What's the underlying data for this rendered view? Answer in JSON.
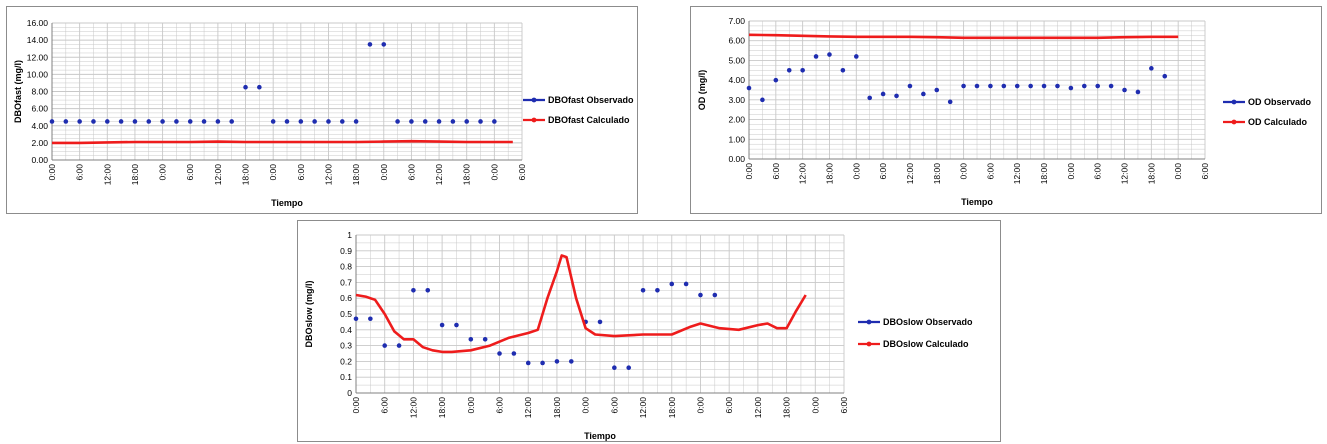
{
  "colors": {
    "observed": "#1f2db0",
    "calculated": "#ee1c1c",
    "grid": "#c8c8c8",
    "axis": "#808080"
  },
  "chart_data": [
    {
      "type": "scatter",
      "xlabel": "Tiempo",
      "ylabel": "DBOfast (mg/l)",
      "ylim": [
        0,
        16
      ],
      "ytick_step": 2,
      "ytick_decimals": 2,
      "x_tick_labels": [
        "0:00",
        "6:00",
        "12:00",
        "18:00",
        "0:00",
        "6:00",
        "12:00",
        "18:00",
        "0:00",
        "6:00",
        "12:00",
        "18:00",
        "0:00",
        "6:00",
        "12:00",
        "18:00",
        "0:00",
        "6:00"
      ],
      "xlim_hours": [
        0,
        102
      ],
      "grid": true,
      "legend_position": "right",
      "series": [
        {
          "name": "DBOfast Observado",
          "style": "markers",
          "x_hours": [
            0,
            3,
            6,
            9,
            12,
            15,
            18,
            21,
            24,
            27,
            30,
            33,
            36,
            39,
            42,
            45,
            48,
            51,
            54,
            57,
            60,
            63,
            66,
            69,
            72,
            75,
            78,
            81,
            84,
            87,
            90,
            93,
            96
          ],
          "values": [
            4.5,
            4.5,
            4.5,
            4.5,
            4.5,
            4.5,
            4.5,
            4.5,
            4.5,
            4.5,
            4.5,
            4.5,
            4.5,
            4.5,
            8.5,
            8.5,
            4.5,
            4.5,
            4.5,
            4.5,
            4.5,
            4.5,
            4.5,
            13.5,
            13.5,
            4.5,
            4.5,
            4.5,
            4.5,
            4.5,
            4.5,
            4.5,
            4.5
          ]
        },
        {
          "name": "DBOfast Calculado",
          "style": "line",
          "x_hours": [
            0,
            6,
            12,
            18,
            24,
            30,
            36,
            42,
            48,
            54,
            60,
            66,
            72,
            78,
            84,
            90,
            96,
            100
          ],
          "values": [
            2.0,
            2.0,
            2.05,
            2.1,
            2.1,
            2.1,
            2.15,
            2.1,
            2.1,
            2.1,
            2.1,
            2.1,
            2.15,
            2.2,
            2.15,
            2.1,
            2.1,
            2.1
          ]
        }
      ]
    },
    {
      "type": "scatter",
      "xlabel": "Tiempo",
      "ylabel": "OD (mg/l)",
      "ylim": [
        0,
        7
      ],
      "ytick_step": 1,
      "ytick_decimals": 2,
      "x_tick_labels": [
        "0:00",
        "6:00",
        "12:00",
        "18:00",
        "0:00",
        "6:00",
        "12:00",
        "18:00",
        "0:00",
        "6:00",
        "12:00",
        "18:00",
        "0:00",
        "6:00",
        "12:00",
        "18:00",
        "0:00",
        "6:00"
      ],
      "xlim_hours": [
        0,
        102
      ],
      "grid": true,
      "legend_position": "right",
      "series": [
        {
          "name": "OD Observado",
          "style": "markers",
          "x_hours": [
            0,
            3,
            6,
            9,
            12,
            15,
            18,
            21,
            24,
            27,
            30,
            33,
            36,
            39,
            42,
            45,
            48,
            51,
            54,
            57,
            60,
            63,
            66,
            69,
            72,
            75,
            78,
            81,
            84,
            87,
            90,
            93
          ],
          "values": [
            3.6,
            3.0,
            4.0,
            4.5,
            4.5,
            5.2,
            5.3,
            4.5,
            5.2,
            3.1,
            3.3,
            3.2,
            3.7,
            3.3,
            3.5,
            2.9,
            3.7,
            3.7,
            3.7,
            3.7,
            3.7,
            3.7,
            3.7,
            3.7,
            3.6,
            3.7,
            3.7,
            3.7,
            3.5,
            3.4,
            4.6,
            4.2
          ]
        },
        {
          "name": "OD Calculado",
          "style": "line",
          "x_hours": [
            0,
            6,
            12,
            18,
            24,
            30,
            36,
            42,
            48,
            54,
            60,
            66,
            72,
            78,
            84,
            90,
            96
          ],
          "values": [
            6.3,
            6.28,
            6.25,
            6.22,
            6.2,
            6.2,
            6.2,
            6.18,
            6.15,
            6.15,
            6.15,
            6.15,
            6.15,
            6.15,
            6.18,
            6.2,
            6.2
          ]
        }
      ]
    },
    {
      "type": "scatter",
      "xlabel": "Tiempo",
      "ylabel": "DBOslow (mg/l)",
      "ylim": [
        0,
        1
      ],
      "ytick_step": 0.1,
      "ytick_decimals": -1,
      "x_tick_labels": [
        "0:00",
        "6:00",
        "12:00",
        "18:00",
        "0:00",
        "6:00",
        "12:00",
        "18:00",
        "0:00",
        "6:00",
        "12:00",
        "18:00",
        "0:00",
        "6:00",
        "12:00",
        "18:00",
        "0:00",
        "6:00"
      ],
      "xlim_hours": [
        0,
        102
      ],
      "grid": true,
      "legend_position": "right",
      "series": [
        {
          "name": "DBOslow  Observado",
          "style": "markers",
          "x_hours": [
            0,
            3,
            6,
            9,
            12,
            15,
            18,
            21,
            24,
            27,
            30,
            33,
            36,
            39,
            42,
            45,
            48,
            51,
            54,
            57,
            60,
            63,
            66,
            69,
            72,
            75
          ],
          "values": [
            0.47,
            0.47,
            0.3,
            0.3,
            0.65,
            0.65,
            0.43,
            0.43,
            0.34,
            0.34,
            0.25,
            0.25,
            0.19,
            0.19,
            0.2,
            0.2,
            0.45,
            0.45,
            0.16,
            0.16,
            0.65,
            0.65,
            0.69,
            0.69,
            0.62,
            0.62
          ]
        },
        {
          "name": "DBOslow Calculado",
          "style": "line",
          "x_hours": [
            0,
            2,
            4,
            6,
            8,
            10,
            12,
            14,
            16,
            18,
            20,
            24,
            28,
            32,
            36,
            38,
            40,
            42,
            43,
            44,
            46,
            48,
            50,
            54,
            60,
            66,
            70,
            72,
            76,
            80,
            84,
            86,
            88,
            90,
            92,
            94
          ],
          "values": [
            0.62,
            0.61,
            0.59,
            0.5,
            0.39,
            0.34,
            0.34,
            0.29,
            0.27,
            0.26,
            0.26,
            0.27,
            0.3,
            0.35,
            0.38,
            0.4,
            0.6,
            0.77,
            0.87,
            0.86,
            0.6,
            0.41,
            0.37,
            0.36,
            0.37,
            0.37,
            0.42,
            0.44,
            0.41,
            0.4,
            0.43,
            0.44,
            0.41,
            0.41,
            0.52,
            0.62
          ]
        }
      ]
    }
  ]
}
